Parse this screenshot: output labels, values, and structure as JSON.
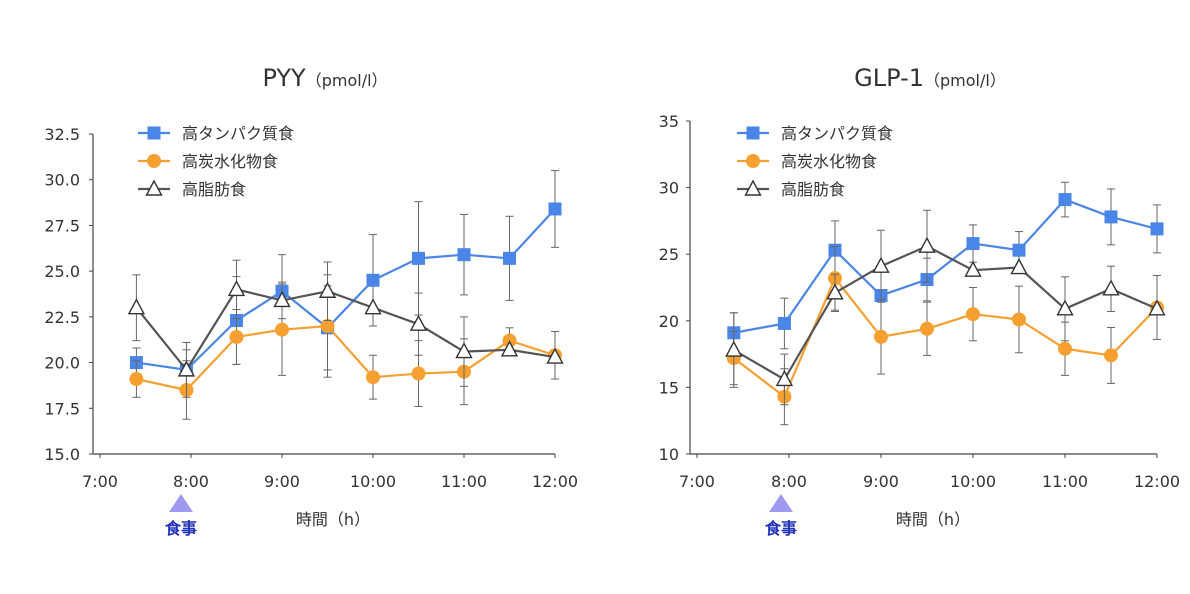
{
  "chart_data": [
    {
      "type": "line",
      "title": "PYY",
      "title_unit": "（pmol/l）",
      "xlabel": "時間（h）",
      "ylabel": "",
      "ylim": [
        15.0,
        32.5
      ],
      "yticks": [
        "15.0",
        "17.5",
        "20.0",
        "22.5",
        "25.0",
        "27.5",
        "30.0",
        "32.5"
      ],
      "xlim": [
        7,
        12
      ],
      "xticks": [
        "7:00",
        "8:00",
        "9:00",
        "10:00",
        "11:00",
        "12:00"
      ],
      "x": [
        7.4,
        7.95,
        8.5,
        9.0,
        9.5,
        10.0,
        10.5,
        11.0,
        11.5,
        12.0
      ],
      "meal_label": "食事",
      "legend_position": "top-left",
      "grid": false,
      "series": [
        {
          "name": "高タンパク質食",
          "color": "#4a86e8",
          "marker": "square",
          "values": [
            20.0,
            19.6,
            22.3,
            23.9,
            21.9,
            24.5,
            25.7,
            25.9,
            25.7,
            28.4
          ],
          "errors": [
            0.8,
            1.1,
            2.4,
            2.0,
            2.3,
            2.5,
            3.1,
            2.2,
            2.3,
            2.1
          ]
        },
        {
          "name": "高炭水化物食",
          "color": "#f5a030",
          "marker": "circle",
          "values": [
            19.1,
            18.5,
            21.4,
            21.8,
            22.0,
            19.2,
            19.4,
            19.5,
            21.2,
            20.4
          ],
          "errors": [
            1.0,
            1.6,
            1.5,
            2.5,
            2.8,
            1.2,
            1.8,
            1.8,
            0.7,
            1.3
          ]
        },
        {
          "name": "高脂肪食",
          "color": "#555555",
          "marker": "triangle",
          "values": [
            23.0,
            19.6,
            24.0,
            23.4,
            23.9,
            23.0,
            22.1,
            20.6,
            20.7,
            20.3
          ],
          "errors": [
            1.8,
            1.5,
            1.6,
            1.0,
            1.6,
            0.0,
            1.7,
            1.9,
            0.0,
            0.0
          ]
        }
      ]
    },
    {
      "type": "line",
      "title": "GLP-1",
      "title_unit": "（pmol/l）",
      "xlabel": "時間（h）",
      "ylabel": "",
      "ylim": [
        10,
        35
      ],
      "yticks": [
        "10",
        "15",
        "20",
        "25",
        "30",
        "35"
      ],
      "xlim": [
        7,
        12
      ],
      "xticks": [
        "7:00",
        "8:00",
        "9:00",
        "10:00",
        "11:00",
        "12:00"
      ],
      "x": [
        7.4,
        7.95,
        8.5,
        9.0,
        9.5,
        10.0,
        10.5,
        11.0,
        11.5,
        12.0
      ],
      "meal_label": "食事",
      "legend_position": "top-left",
      "grid": false,
      "series": [
        {
          "name": "高タンパク質食",
          "color": "#4a86e8",
          "marker": "square",
          "values": [
            19.1,
            19.8,
            25.3,
            21.9,
            23.1,
            25.8,
            25.3,
            29.1,
            27.8,
            26.9
          ],
          "errors": [
            1.5,
            1.9,
            2.2,
            0.0,
            1.6,
            1.4,
            1.4,
            1.3,
            2.1,
            1.8
          ]
        },
        {
          "name": "高炭水化物食",
          "color": "#f5a030",
          "marker": "circle",
          "values": [
            17.2,
            14.3,
            23.2,
            18.8,
            19.4,
            20.5,
            20.1,
            17.9,
            17.4,
            21.0
          ],
          "errors": [
            2.0,
            2.1,
            2.4,
            2.8,
            2.0,
            2.0,
            2.5,
            2.0,
            2.1,
            2.4
          ]
        },
        {
          "name": "高脂肪食",
          "color": "#555555",
          "marker": "triangle",
          "values": [
            17.8,
            15.6,
            22.1,
            24.1,
            25.6,
            23.8,
            24.0,
            20.9,
            22.4,
            20.9
          ],
          "errors": [
            2.8,
            1.9,
            1.4,
            2.7,
            2.7,
            0.0,
            0.0,
            2.4,
            1.7,
            0.0
          ]
        }
      ]
    }
  ]
}
